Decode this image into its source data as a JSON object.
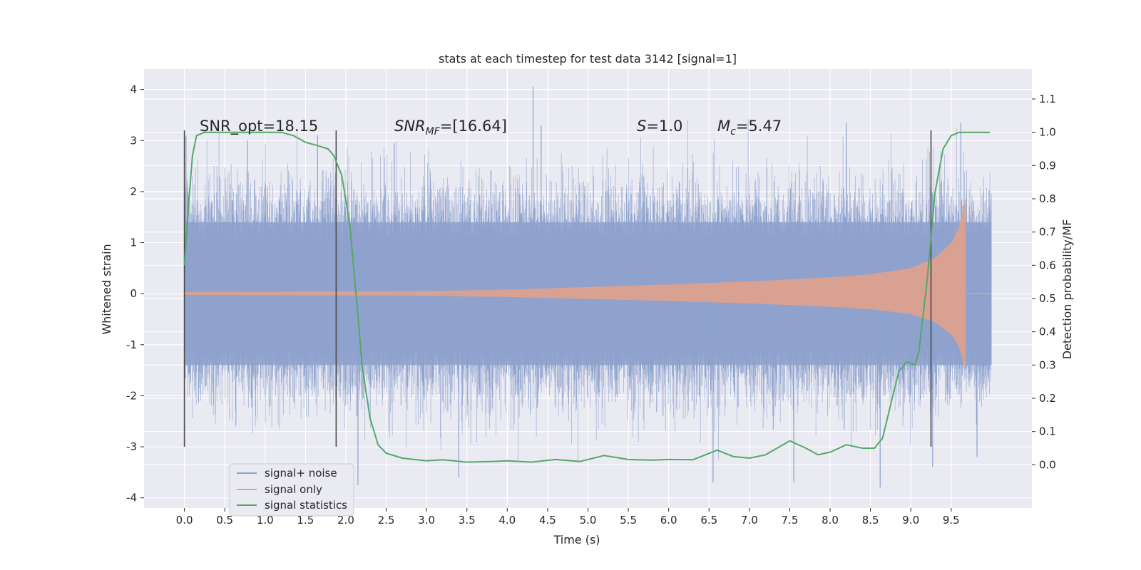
{
  "chart_data": {
    "type": "line",
    "title": "stats at each timestep for test data 3142 [signal=1]",
    "xlabel": "Time (s)",
    "ylabel": "Whitened strain",
    "y2label": "Detection probability/MF",
    "xlim": [
      -0.5,
      10.5
    ],
    "ylim": [
      -4.2,
      4.4
    ],
    "y2lim": [
      -0.13,
      1.19
    ],
    "x_ticks": [
      "0.0",
      "0.5",
      "1.0",
      "1.5",
      "2.0",
      "2.5",
      "3.0",
      "3.5",
      "4.0",
      "4.5",
      "5.0",
      "5.5",
      "6.0",
      "6.5",
      "7.0",
      "7.5",
      "8.0",
      "8.5",
      "9.0",
      "9.5"
    ],
    "y_ticks": [
      "-4",
      "-3",
      "-2",
      "-1",
      "0",
      "1",
      "2",
      "3",
      "4"
    ],
    "y2_ticks": [
      "0.0",
      "0.1",
      "0.2",
      "0.3",
      "0.4",
      "0.5",
      "0.6",
      "0.7",
      "0.8",
      "0.9",
      "1.0",
      "1.1"
    ],
    "grid": true,
    "legend_position": "lower-left",
    "annotations": [
      {
        "text": "SNR_opt=18.15",
        "x": 0.2,
        "y": 3.2
      },
      {
        "text": "SNR",
        "sub": "MF",
        "rest": "=[16.64]",
        "x": 2.6,
        "y": 3.2
      },
      {
        "text": "S",
        "rest": "=1.0",
        "x": 5.6,
        "y": 3.2
      },
      {
        "text": "M",
        "sub": "c",
        "rest": "=5.47",
        "x": 6.6,
        "y": 3.2
      }
    ],
    "vlines": [
      {
        "x": 0.0,
        "ymin": -3.0,
        "ymax": 3.2
      },
      {
        "x": 1.88,
        "ymin": -3.0,
        "ymax": 3.2
      },
      {
        "x": 9.25,
        "ymin": -3.0,
        "ymax": 3.2
      }
    ],
    "series": [
      {
        "name": "signal+ noise",
        "color": "#8da1cc",
        "kind": "noise",
        "x_range": [
          0.0,
          10.0
        ],
        "envelope": 1.4,
        "peaks": [
          {
            "x": 0.02,
            "y": 3.1
          },
          {
            "x": 0.78,
            "y": 3.0
          },
          {
            "x": 1.65,
            "y": 3.1
          },
          {
            "x": 2.15,
            "y": -3.75
          },
          {
            "x": 2.6,
            "y": 2.95
          },
          {
            "x": 3.4,
            "y": -3.6
          },
          {
            "x": 4.32,
            "y": 4.05
          },
          {
            "x": 4.42,
            "y": 3.3
          },
          {
            "x": 6.55,
            "y": -3.7
          },
          {
            "x": 7.55,
            "y": -3.7
          },
          {
            "x": 8.2,
            "y": 3.35
          },
          {
            "x": 8.62,
            "y": -3.8
          },
          {
            "x": 9.27,
            "y": -3.4
          },
          {
            "x": 9.62,
            "y": 3.35
          },
          {
            "x": 9.82,
            "y": -3.2
          }
        ]
      },
      {
        "name": "signal only",
        "color": "#e0a18c",
        "kind": "chirp",
        "x_range": [
          0.0,
          10.0
        ],
        "merger_x": 9.68,
        "amplitude_points": [
          {
            "x": 0.0,
            "y": 0.03
          },
          {
            "x": 3.0,
            "y": 0.05
          },
          {
            "x": 4.0,
            "y": 0.08
          },
          {
            "x": 5.0,
            "y": 0.13
          },
          {
            "x": 6.0,
            "y": 0.18
          },
          {
            "x": 7.0,
            "y": 0.24
          },
          {
            "x": 8.0,
            "y": 0.32
          },
          {
            "x": 8.5,
            "y": 0.38
          },
          {
            "x": 9.0,
            "y": 0.5
          },
          {
            "x": 9.3,
            "y": 0.7
          },
          {
            "x": 9.5,
            "y": 1.0
          },
          {
            "x": 9.6,
            "y": 1.3
          },
          {
            "x": 9.68,
            "y": 1.9
          }
        ]
      },
      {
        "name": "signal statistics",
        "color": "#55a868",
        "axis": "right",
        "points": [
          {
            "x": 0.0,
            "y": 0.6
          },
          {
            "x": 0.05,
            "y": 0.78
          },
          {
            "x": 0.1,
            "y": 0.93
          },
          {
            "x": 0.15,
            "y": 0.99
          },
          {
            "x": 0.25,
            "y": 1.0
          },
          {
            "x": 0.5,
            "y": 1.0
          },
          {
            "x": 1.0,
            "y": 1.0
          },
          {
            "x": 1.2,
            "y": 1.0
          },
          {
            "x": 1.35,
            "y": 0.99
          },
          {
            "x": 1.5,
            "y": 0.97
          },
          {
            "x": 1.65,
            "y": 0.96
          },
          {
            "x": 1.78,
            "y": 0.95
          },
          {
            "x": 1.85,
            "y": 0.93
          },
          {
            "x": 1.95,
            "y": 0.87
          },
          {
            "x": 2.05,
            "y": 0.72
          },
          {
            "x": 2.15,
            "y": 0.45
          },
          {
            "x": 2.2,
            "y": 0.3
          },
          {
            "x": 2.3,
            "y": 0.14
          },
          {
            "x": 2.4,
            "y": 0.06
          },
          {
            "x": 2.5,
            "y": 0.035
          },
          {
            "x": 2.7,
            "y": 0.02
          },
          {
            "x": 3.0,
            "y": 0.012
          },
          {
            "x": 3.2,
            "y": 0.015
          },
          {
            "x": 3.5,
            "y": 0.008
          },
          {
            "x": 3.8,
            "y": 0.01
          },
          {
            "x": 4.0,
            "y": 0.012
          },
          {
            "x": 4.3,
            "y": 0.008
          },
          {
            "x": 4.6,
            "y": 0.016
          },
          {
            "x": 4.9,
            "y": 0.01
          },
          {
            "x": 5.2,
            "y": 0.028
          },
          {
            "x": 5.5,
            "y": 0.016
          },
          {
            "x": 5.8,
            "y": 0.014
          },
          {
            "x": 6.0,
            "y": 0.016
          },
          {
            "x": 6.3,
            "y": 0.015
          },
          {
            "x": 6.6,
            "y": 0.044
          },
          {
            "x": 6.8,
            "y": 0.025
          },
          {
            "x": 7.0,
            "y": 0.02
          },
          {
            "x": 7.2,
            "y": 0.03
          },
          {
            "x": 7.5,
            "y": 0.072
          },
          {
            "x": 7.7,
            "y": 0.05
          },
          {
            "x": 7.85,
            "y": 0.03
          },
          {
            "x": 8.0,
            "y": 0.038
          },
          {
            "x": 8.2,
            "y": 0.06
          },
          {
            "x": 8.4,
            "y": 0.05
          },
          {
            "x": 8.55,
            "y": 0.05
          },
          {
            "x": 8.65,
            "y": 0.08
          },
          {
            "x": 8.75,
            "y": 0.18
          },
          {
            "x": 8.85,
            "y": 0.28
          },
          {
            "x": 8.95,
            "y": 0.31
          },
          {
            "x": 9.05,
            "y": 0.3
          },
          {
            "x": 9.1,
            "y": 0.34
          },
          {
            "x": 9.2,
            "y": 0.55
          },
          {
            "x": 9.3,
            "y": 0.82
          },
          {
            "x": 9.4,
            "y": 0.95
          },
          {
            "x": 9.5,
            "y": 0.99
          },
          {
            "x": 9.6,
            "y": 1.0
          },
          {
            "x": 9.98,
            "y": 1.0
          }
        ]
      }
    ],
    "colors": {
      "plot_background": "#eaeaf2",
      "grid": "#ffffff",
      "vlines": "#4a4a4a",
      "text": "#262626"
    }
  }
}
